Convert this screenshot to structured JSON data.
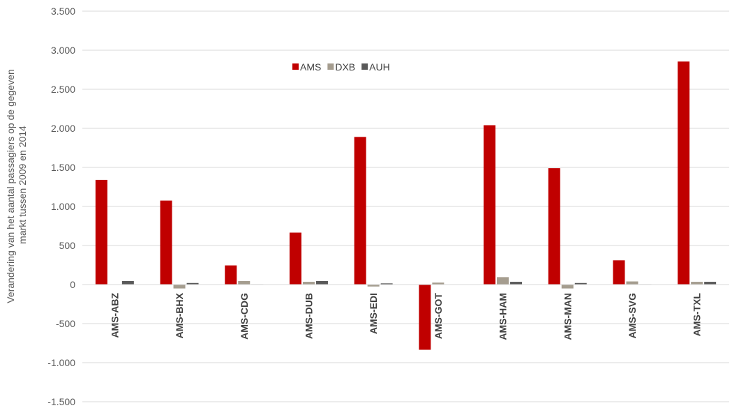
{
  "chart_data": {
    "type": "bar",
    "categories": [
      "AMS-ABZ",
      "AMS-BHX",
      "AMS-CDG",
      "AMS-DUB",
      "AMS-EDI",
      "AMS-GOT",
      "AMS-HAM",
      "AMS-MAN",
      "AMS-SVG",
      "AMS-TXL"
    ],
    "series": [
      {
        "name": "AMS",
        "color": "#C00000",
        "values": [
          1340,
          1075,
          245,
          665,
          1890,
          -835,
          2040,
          1490,
          310,
          2855
        ]
      },
      {
        "name": "DXB",
        "color": "#A59D8F",
        "values": [
          0,
          -50,
          45,
          35,
          -25,
          25,
          95,
          -50,
          40,
          35
        ]
      },
      {
        "name": "AUH",
        "color": "#595959",
        "values": [
          45,
          20,
          5,
          45,
          15,
          0,
          35,
          20,
          5,
          35
        ]
      }
    ],
    "title": "",
    "xlabel": "",
    "ylabel_line1": "Verandering van het aantal passagiers op de gegeven",
    "ylabel_line2": "markt tussen 2009 en 2014",
    "ylim": [
      -1500,
      3500
    ],
    "yticks": [
      3500,
      3000,
      2500,
      2000,
      1500,
      1000,
      500,
      0,
      -500,
      -1000,
      -1500
    ],
    "ytick_labels": [
      "3.500",
      "3.000",
      "2.500",
      "2.000",
      "1.500",
      "1.000",
      "500",
      "0",
      "-500",
      "-1.000",
      "-1.500"
    ],
    "grid": true,
    "legend_position": "top-center"
  }
}
